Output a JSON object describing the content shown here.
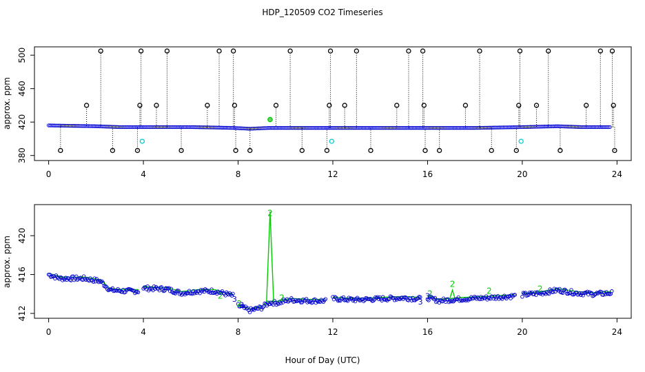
{
  "title": "HDP_120509  CO2 Timeseries",
  "xlabel": "Hour of Day (UTC)",
  "colors": {
    "primary": "#0000cc",
    "ok": "#00cc00",
    "flag": "#000000",
    "alt": "#00cccc",
    "fill": "#66cc66"
  },
  "chart_data": [
    {
      "type": "scatter",
      "title": "HDP_120509  CO2 Timeseries",
      "ylabel": "approx. ppm",
      "xlabel": "",
      "xlim": [
        -0.6,
        24.6
      ],
      "ylim": [
        374,
        510
      ],
      "xticks": [
        0,
        4,
        8,
        12,
        16,
        20,
        24
      ],
      "yticks": [
        380,
        420,
        460,
        500
      ],
      "grid": false,
      "baseline": [
        [
          0,
          416
        ],
        [
          1,
          415.5
        ],
        [
          2,
          415
        ],
        [
          3,
          414
        ],
        [
          4,
          414
        ],
        [
          5,
          414
        ],
        [
          6,
          414
        ],
        [
          7,
          413.5
        ],
        [
          7.8,
          413
        ],
        [
          8.5,
          412
        ],
        [
          9.3,
          413
        ],
        [
          10,
          413
        ],
        [
          12,
          413
        ],
        [
          14,
          413
        ],
        [
          16,
          413
        ],
        [
          18,
          413
        ],
        [
          20,
          414
        ],
        [
          21.5,
          415
        ],
        [
          22.5,
          414
        ],
        [
          23.7,
          414
        ]
      ],
      "high_spikes": [
        2.2,
        3.9,
        5.0,
        7.2,
        7.8,
        10.2,
        11.9,
        13.0,
        15.2,
        15.8,
        18.2,
        19.9,
        21.1,
        23.3,
        23.8
      ],
      "mid_spikes": [
        1.6,
        3.85,
        4.55,
        6.7,
        7.85,
        9.6,
        11.85,
        12.5,
        14.7,
        15.85,
        17.6,
        19.85,
        20.6,
        22.7,
        23.85
      ],
      "low_spikes": [
        0.5,
        2.7,
        3.75,
        5.6,
        7.9,
        8.5,
        10.7,
        11.75,
        13.6,
        15.9,
        16.5,
        18.7,
        19.75,
        21.6,
        23.9
      ],
      "high_value": 505,
      "mid_value": 440,
      "low_value": 386,
      "cyan_points": [
        [
          3.95,
          397
        ],
        [
          11.95,
          397
        ],
        [
          19.95,
          397
        ]
      ],
      "green_points": [
        [
          9.35,
          423
        ]
      ]
    },
    {
      "type": "scatter",
      "title": "",
      "ylabel": "approx. ppm",
      "xlabel": "Hour of Day (UTC)",
      "xlim": [
        -0.6,
        24.6
      ],
      "ylim": [
        411.5,
        423.2
      ],
      "xticks": [
        0,
        4,
        8,
        12,
        16,
        20,
        24
      ],
      "yticks": [
        412,
        416,
        420
      ],
      "grid": false,
      "segments": [
        {
          "points": [
            [
              0,
              416
            ],
            [
              0.5,
              415.6
            ],
            [
              1.5,
              415.6
            ],
            [
              2.2,
              415.3
            ],
            [
              2.6,
              414.4
            ],
            [
              3.3,
              414.3
            ],
            [
              3.8,
              414.3
            ]
          ]
        },
        {
          "points": [
            [
              4.0,
              414.6
            ],
            [
              5.0,
              414.5
            ],
            [
              5.6,
              414.1
            ],
            [
              6.3,
              414.3
            ],
            [
              7.0,
              414.3
            ],
            [
              7.5,
              414.0
            ],
            [
              7.8,
              413.8
            ]
          ]
        },
        {
          "points": [
            [
              8.0,
              412.8
            ],
            [
              8.5,
              412.3
            ],
            [
              9.0,
              412.6
            ],
            [
              9.3,
              413.1
            ],
            [
              9.7,
              413.1
            ],
            [
              10.2,
              413.4
            ],
            [
              11.0,
              413.3
            ],
            [
              11.7,
              413.3
            ]
          ]
        },
        {
          "points": [
            [
              12.0,
              413.5
            ],
            [
              13.0,
              413.4
            ],
            [
              14.0,
              413.5
            ],
            [
              15.0,
              413.6
            ],
            [
              15.7,
              413.5
            ]
          ]
        },
        {
          "points": [
            [
              16.0,
              413.6
            ],
            [
              16.5,
              413.3
            ],
            [
              17.5,
              413.5
            ],
            [
              18.5,
              413.6
            ],
            [
              19.7,
              413.8
            ]
          ]
        },
        {
          "points": [
            [
              20.0,
              413.9
            ],
            [
              20.8,
              414.1
            ],
            [
              21.5,
              414.4
            ],
            [
              22.3,
              414.1
            ],
            [
              23.0,
              414.0
            ],
            [
              23.8,
              414.1
            ]
          ]
        }
      ],
      "green_labels": [
        {
          "x": 9.35,
          "y": 422.3,
          "text": "2"
        },
        {
          "x": 17.05,
          "y": 415.0,
          "text": "2"
        },
        {
          "x": 18.6,
          "y": 414.3,
          "text": "2"
        },
        {
          "x": 20.75,
          "y": 414.5,
          "text": "2"
        },
        {
          "x": 7.25,
          "y": 413.8,
          "text": "2"
        },
        {
          "x": 8.05,
          "y": 413.0,
          "text": "2"
        },
        {
          "x": 9.85,
          "y": 413.6,
          "text": "2"
        },
        {
          "x": 16.1,
          "y": 414.0,
          "text": "2"
        }
      ],
      "dark_labels": [
        {
          "x": 8.15,
          "y": 412.9,
          "text": "3"
        },
        {
          "x": 7.85,
          "y": 413.5,
          "text": "3"
        },
        {
          "x": 15.7,
          "y": 413.2,
          "text": "3"
        },
        {
          "x": 16.0,
          "y": 413.8,
          "text": "3"
        }
      ],
      "spike": {
        "x": [
          9.2,
          9.35,
          9.5
        ],
        "y": [
          413.2,
          422.5,
          413.2
        ]
      },
      "bump": {
        "x": [
          16.95,
          17.05,
          17.15
        ],
        "y": [
          413.6,
          414.4,
          413.6
        ]
      }
    }
  ]
}
